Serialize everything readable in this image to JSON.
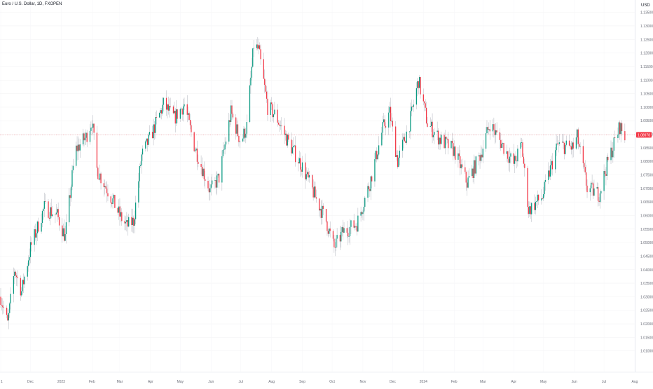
{
  "chart_data": {
    "type": "candlestick",
    "title": "Euro / U.S. Dollar, 1D, FXOPEN",
    "currency": "USD",
    "ylim": [
      1.005,
      1.1375
    ],
    "y_ticks": [
      "1.13500",
      "1.13000",
      "1.12500",
      "1.12000",
      "1.11500",
      "1.11000",
      "1.10500",
      "1.10000",
      "1.09500",
      "1.09000",
      "1.08500",
      "1.08000",
      "1.07500",
      "1.07000",
      "1.06500",
      "1.06000",
      "1.05500",
      "1.05000",
      "1.04500",
      "1.04000",
      "1.03500",
      "1.03000",
      "1.02500",
      "1.02000",
      "1.01500",
      "1.01000"
    ],
    "x_ticks": [
      "1",
      "Dec",
      "2023",
      "Feb",
      "Mar",
      "Apr",
      "May",
      "Jun",
      "Jul",
      "Aug",
      "Sep",
      "Oct",
      "Nov",
      "Dec",
      "2024",
      "Feb",
      "Mar",
      "Apr",
      "May",
      "Jun",
      "Jul",
      "Aug"
    ],
    "last_price": "1.08978",
    "last_price_value": 1.0898,
    "up_color": "#089981",
    "down_color": "#f23645",
    "wick_color": "#b2b5be",
    "anchors": [
      [
        "2022-11-01",
        1.03
      ],
      [
        "2022-11-08",
        1.02
      ],
      [
        "2022-11-15",
        1.04
      ],
      [
        "2022-11-22",
        1.032
      ],
      [
        "2022-12-01",
        1.048
      ],
      [
        "2022-12-15",
        1.063
      ],
      [
        "2022-12-28",
        1.06
      ],
      [
        "2023-01-05",
        1.052
      ],
      [
        "2023-01-15",
        1.084
      ],
      [
        "2023-01-26",
        1.089
      ],
      [
        "2023-02-01",
        1.095
      ],
      [
        "2023-02-06",
        1.077
      ],
      [
        "2023-02-20",
        1.067
      ],
      [
        "2023-03-01",
        1.06
      ],
      [
        "2023-03-08",
        1.056
      ],
      [
        "2023-03-15",
        1.058
      ],
      [
        "2023-03-23",
        1.082
      ],
      [
        "2023-04-01",
        1.089
      ],
      [
        "2023-04-14",
        1.101
      ],
      [
        "2023-04-25",
        1.096
      ],
      [
        "2023-05-05",
        1.101
      ],
      [
        "2023-05-15",
        1.086
      ],
      [
        "2023-05-31",
        1.069
      ],
      [
        "2023-06-09",
        1.074
      ],
      [
        "2023-06-21",
        1.098
      ],
      [
        "2023-07-01",
        1.087
      ],
      [
        "2023-07-07",
        1.093
      ],
      [
        "2023-07-14",
        1.123
      ],
      [
        "2023-07-19",
        1.121
      ],
      [
        "2023-07-28",
        1.1
      ],
      [
        "2023-08-05",
        1.097
      ],
      [
        "2023-08-18",
        1.087
      ],
      [
        "2023-09-01",
        1.078
      ],
      [
        "2023-09-15",
        1.066
      ],
      [
        "2023-09-25",
        1.058
      ],
      [
        "2023-10-03",
        1.048
      ],
      [
        "2023-10-12",
        1.054
      ],
      [
        "2023-10-26",
        1.057
      ],
      [
        "2023-11-08",
        1.072
      ],
      [
        "2023-11-21",
        1.092
      ],
      [
        "2023-11-28",
        1.098
      ],
      [
        "2023-12-06",
        1.08
      ],
      [
        "2023-12-18",
        1.094
      ],
      [
        "2023-12-27",
        1.11
      ],
      [
        "2024-01-05",
        1.094
      ],
      [
        "2024-01-18",
        1.088
      ],
      [
        "2024-02-01",
        1.084
      ],
      [
        "2024-02-14",
        1.072
      ],
      [
        "2024-02-28",
        1.083
      ],
      [
        "2024-03-08",
        1.094
      ],
      [
        "2024-03-19",
        1.087
      ],
      [
        "2024-04-01",
        1.079
      ],
      [
        "2024-04-09",
        1.086
      ],
      [
        "2024-04-16",
        1.062
      ],
      [
        "2024-04-30",
        1.067
      ],
      [
        "2024-05-15",
        1.086
      ],
      [
        "2024-05-31",
        1.085
      ],
      [
        "2024-06-04",
        1.089
      ],
      [
        "2024-06-14",
        1.07
      ],
      [
        "2024-06-26",
        1.068
      ],
      [
        "2024-07-05",
        1.08
      ],
      [
        "2024-07-17",
        1.093
      ],
      [
        "2024-07-22",
        1.089
      ]
    ]
  }
}
